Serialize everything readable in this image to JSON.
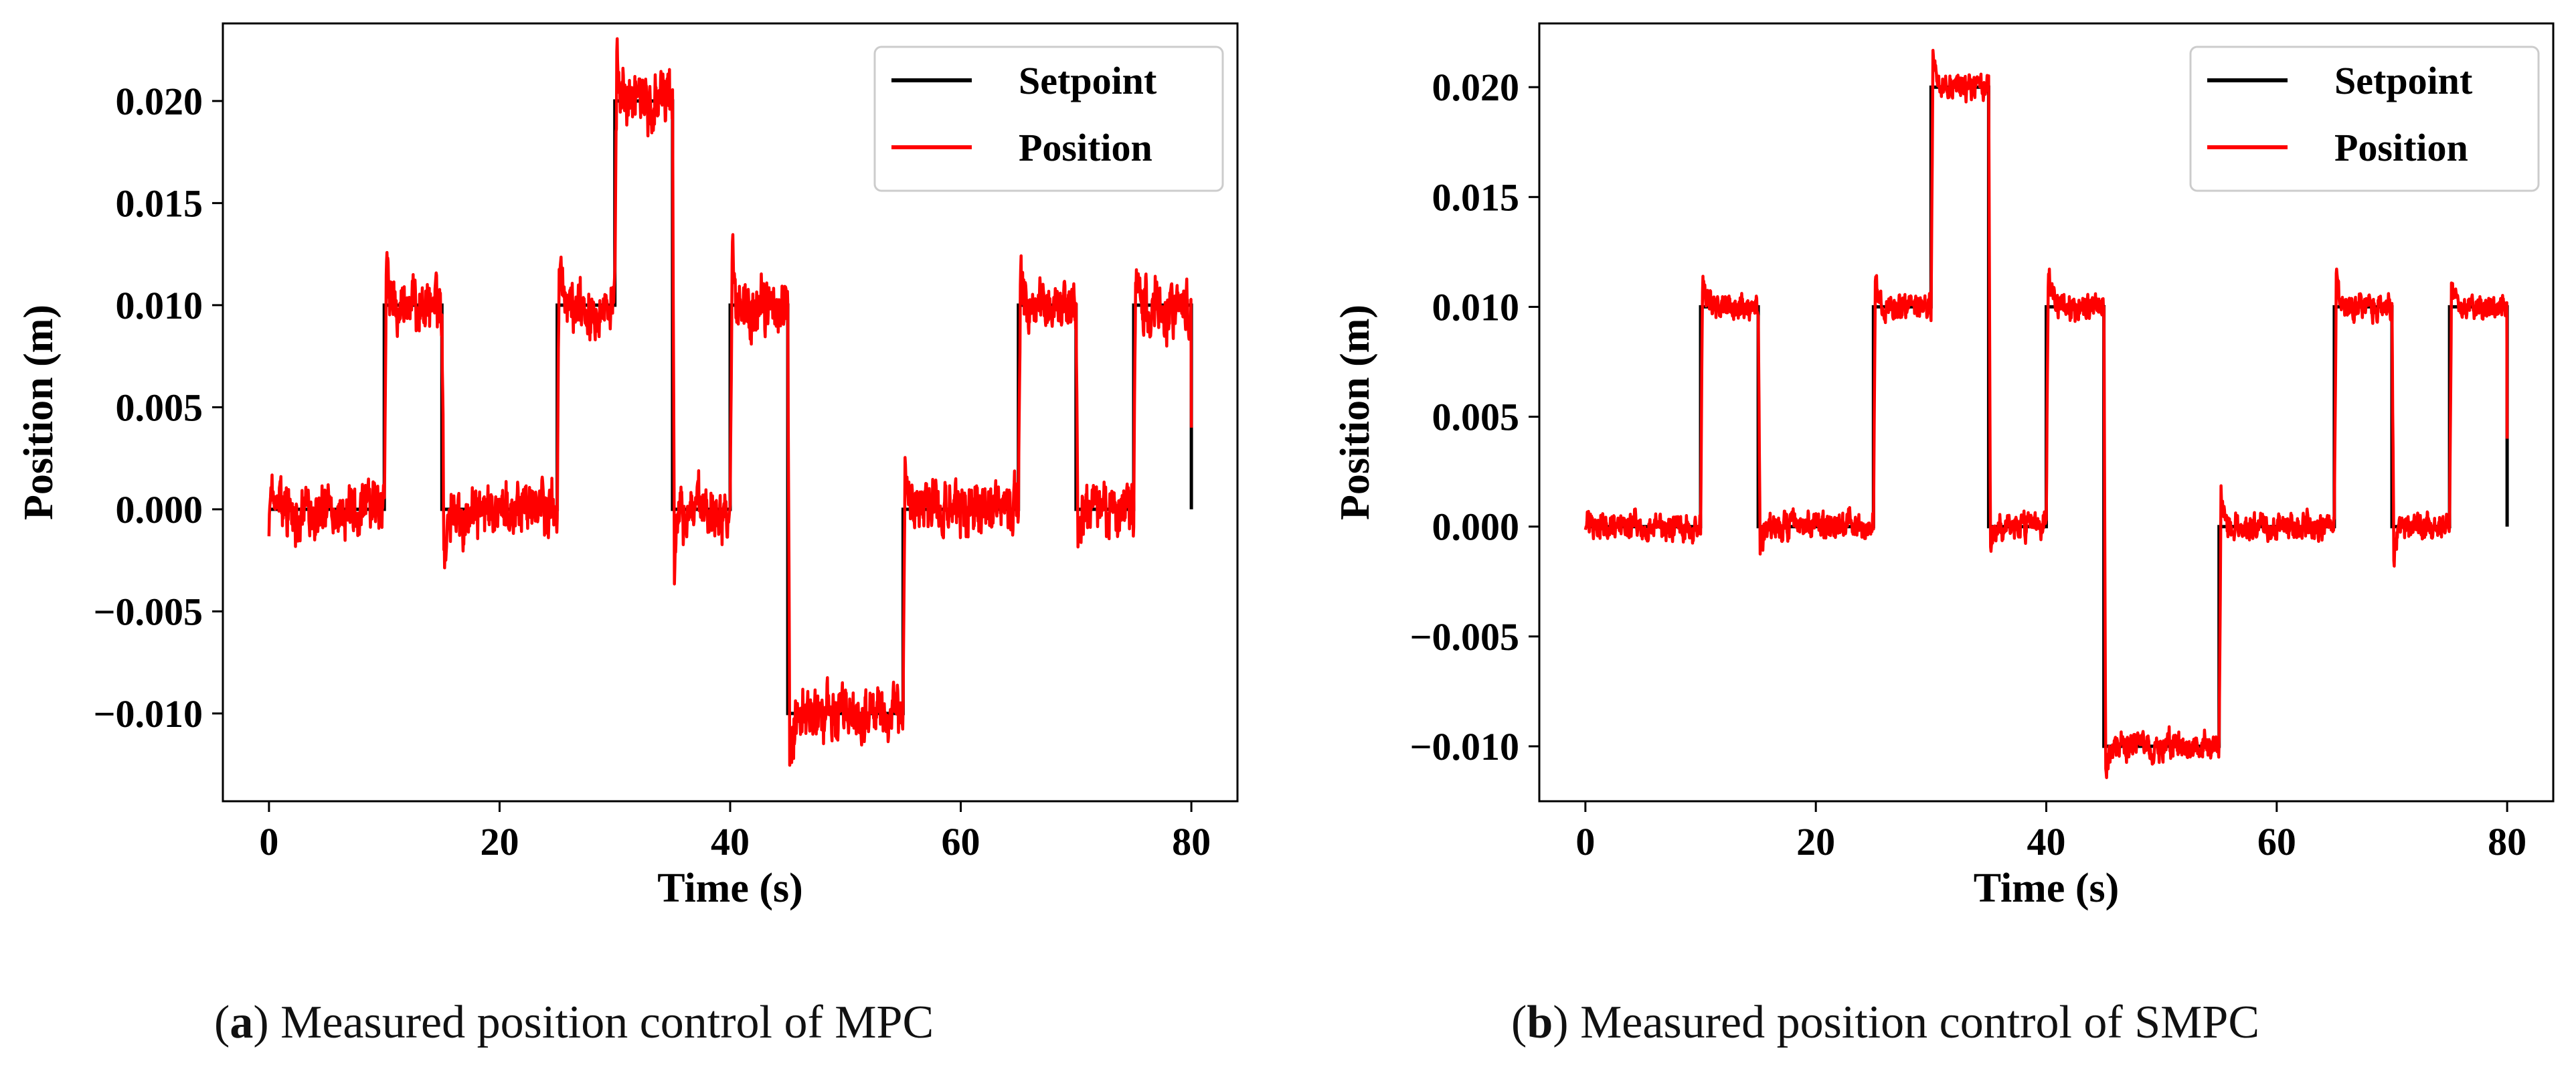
{
  "chart_data": [
    {
      "type": "line",
      "caption": {
        "tag": "a",
        "text": "Measured position control of MPC"
      },
      "xlabel": "Time (s)",
      "ylabel": "Position (m)",
      "xlim": [
        -4,
        84
      ],
      "ylim": [
        -0.0143,
        0.0238
      ],
      "xticks": [
        0,
        20,
        40,
        60,
        80
      ],
      "yticks": [
        -0.01,
        -0.005,
        0.0,
        0.005,
        0.01,
        0.015,
        0.02
      ],
      "ytick_labels": [
        "−0.010",
        "−0.005",
        "0.000",
        "0.005",
        "0.010",
        "0.015",
        "0.020"
      ],
      "legend_position": "top-right",
      "grid": false,
      "setpoint_steps": [
        [
          0,
          10,
          0.0
        ],
        [
          10,
          15,
          0.01
        ],
        [
          15,
          25,
          0.0
        ],
        [
          25,
          30,
          0.01
        ],
        [
          30,
          35,
          0.02
        ],
        [
          35,
          40,
          0.0
        ],
        [
          40,
          45,
          0.01
        ],
        [
          45,
          55,
          -0.01
        ],
        [
          55,
          65,
          0.0
        ],
        [
          65,
          70,
          0.01
        ],
        [
          70,
          75,
          0.0
        ],
        [
          75,
          80,
          0.01
        ]
      ],
      "series": [
        {
          "name": "Setpoint",
          "color": "#000000",
          "kind": "setpoint"
        },
        {
          "name": "Position",
          "color": "#ff0000",
          "kind": "measured",
          "noise_amplitude": 0.0011,
          "overshoot": 0.003
        }
      ]
    },
    {
      "type": "line",
      "caption": {
        "tag": "b",
        "text": "Measured position control of SMPC"
      },
      "xlabel": "Time (s)",
      "ylabel": "Position (m)",
      "xlim": [
        -4,
        84
      ],
      "ylim": [
        -0.0125,
        0.0229
      ],
      "xticks": [
        0,
        20,
        40,
        60,
        80
      ],
      "yticks": [
        -0.01,
        -0.005,
        0.0,
        0.005,
        0.01,
        0.015,
        0.02
      ],
      "ytick_labels": [
        "−0.010",
        "−0.005",
        "0.000",
        "0.005",
        "0.010",
        "0.015",
        "0.020"
      ],
      "legend_position": "top-right",
      "grid": false,
      "setpoint_steps": [
        [
          0,
          10,
          0.0
        ],
        [
          10,
          15,
          0.01
        ],
        [
          15,
          25,
          0.0
        ],
        [
          25,
          30,
          0.01
        ],
        [
          30,
          35,
          0.02
        ],
        [
          35,
          40,
          0.0
        ],
        [
          40,
          45,
          0.01
        ],
        [
          45,
          55,
          -0.01
        ],
        [
          55,
          65,
          0.0
        ],
        [
          65,
          70,
          0.01
        ],
        [
          70,
          75,
          0.0
        ],
        [
          75,
          80,
          0.01
        ]
      ],
      "series": [
        {
          "name": "Setpoint",
          "color": "#000000",
          "kind": "setpoint"
        },
        {
          "name": "Position",
          "color": "#ff0000",
          "kind": "measured",
          "noise_amplitude": 0.0005,
          "overshoot": 0.0018
        }
      ]
    }
  ]
}
